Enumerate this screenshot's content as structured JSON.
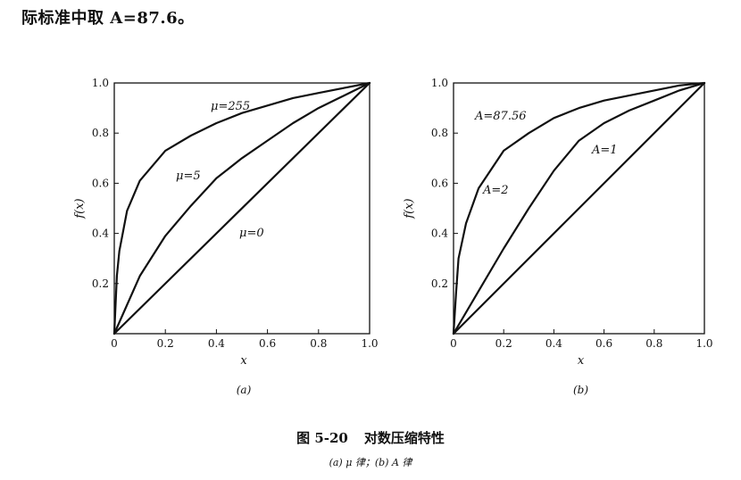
{
  "intro_text": "际标准中取 A=87.6。",
  "caption": {
    "label": "图 5-20",
    "title": "对数压缩特性",
    "subtitle": "(a) μ 律；(b) A 律"
  },
  "chart_data": [
    {
      "type": "line",
      "panel_label": "(a)",
      "xlabel": "x",
      "ylabel": "f(x)",
      "xlim": [
        0,
        1.0
      ],
      "ylim": [
        0,
        1.0
      ],
      "x_ticks": [
        "0",
        "0.2",
        "0.4",
        "0.6",
        "0.8",
        "1.0"
      ],
      "y_ticks": [
        "0.2",
        "0.4",
        "0.6",
        "0.8",
        "1.0"
      ],
      "grid": false,
      "series": [
        {
          "name": "μ=255",
          "x": [
            0,
            0.01,
            0.02,
            0.05,
            0.1,
            0.2,
            0.3,
            0.4,
            0.5,
            0.6,
            0.7,
            0.8,
            0.9,
            1.0
          ],
          "y": [
            0,
            0.23,
            0.33,
            0.49,
            0.61,
            0.73,
            0.79,
            0.84,
            0.88,
            0.91,
            0.94,
            0.96,
            0.98,
            1.0
          ]
        },
        {
          "name": "μ=5",
          "x": [
            0,
            0.1,
            0.2,
            0.3,
            0.4,
            0.5,
            0.6,
            0.7,
            0.8,
            0.9,
            1.0
          ],
          "y": [
            0,
            0.23,
            0.39,
            0.51,
            0.62,
            0.7,
            0.77,
            0.84,
            0.9,
            0.95,
            1.0
          ]
        },
        {
          "name": "μ=0",
          "x": [
            0,
            1.0
          ],
          "y": [
            0,
            1.0
          ]
        }
      ]
    },
    {
      "type": "line",
      "panel_label": "(b)",
      "xlabel": "x",
      "ylabel": "f(x)",
      "xlim": [
        0,
        1.0
      ],
      "ylim": [
        0,
        1.0
      ],
      "x_ticks": [
        "0",
        "0.2",
        "0.4",
        "0.6",
        "0.8",
        "1.0"
      ],
      "y_ticks": [
        "0.2",
        "0.4",
        "0.6",
        "0.8",
        "1.0"
      ],
      "grid": false,
      "series": [
        {
          "name": "A=87.56",
          "x": [
            0,
            0.005,
            0.01,
            0.02,
            0.05,
            0.1,
            0.2,
            0.3,
            0.4,
            0.5,
            0.6,
            0.7,
            0.8,
            0.9,
            1.0
          ],
          "y": [
            0,
            0.08,
            0.16,
            0.3,
            0.44,
            0.58,
            0.73,
            0.8,
            0.86,
            0.9,
            0.93,
            0.95,
            0.97,
            0.99,
            1.0
          ]
        },
        {
          "name": "A=2",
          "x": [
            0,
            0.1,
            0.2,
            0.3,
            0.4,
            0.5,
            0.6,
            0.7,
            0.8,
            0.9,
            1.0
          ],
          "y": [
            0,
            0.17,
            0.34,
            0.5,
            0.65,
            0.77,
            0.84,
            0.89,
            0.93,
            0.97,
            1.0
          ]
        },
        {
          "name": "A=1",
          "x": [
            0,
            1.0
          ],
          "y": [
            0,
            1.0
          ]
        }
      ]
    }
  ]
}
